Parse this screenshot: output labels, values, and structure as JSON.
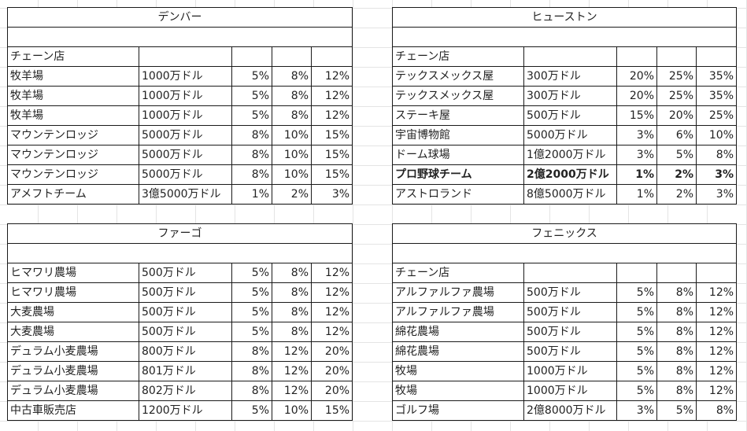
{
  "tables": {
    "denver": {
      "title": "デンバー",
      "header_label": "チェーン店",
      "rows": [
        {
          "name": "牧羊場",
          "price": "1000万ドル",
          "p1": "5%",
          "p2": "8%",
          "p3": "12%"
        },
        {
          "name": "牧羊場",
          "price": "1000万ドル",
          "p1": "5%",
          "p2": "8%",
          "p3": "12%"
        },
        {
          "name": "牧羊場",
          "price": "1000万ドル",
          "p1": "5%",
          "p2": "8%",
          "p3": "12%"
        },
        {
          "name": "マウンテンロッジ",
          "price": "5000万ドル",
          "p1": "8%",
          "p2": "10%",
          "p3": "15%"
        },
        {
          "name": "マウンテンロッジ",
          "price": "5000万ドル",
          "p1": "8%",
          "p2": "10%",
          "p3": "15%"
        },
        {
          "name": "マウンテンロッジ",
          "price": "5000万ドル",
          "p1": "8%",
          "p2": "10%",
          "p3": "15%"
        },
        {
          "name": "アメフトチーム",
          "price": "3億5000万ドル",
          "p1": "1%",
          "p2": "2%",
          "p3": "3%"
        }
      ]
    },
    "houston": {
      "title": "ヒューストン",
      "header_label": "チェーン店",
      "rows": [
        {
          "name": "テックスメックス屋",
          "price": "300万ドル",
          "p1": "20%",
          "p2": "25%",
          "p3": "35%"
        },
        {
          "name": "テックスメックス屋",
          "price": "300万ドル",
          "p1": "20%",
          "p2": "25%",
          "p3": "35%"
        },
        {
          "name": "ステーキ屋",
          "price": "500万ドル",
          "p1": "15%",
          "p2": "20%",
          "p3": "25%"
        },
        {
          "name": "宇宙博物館",
          "price": "5000万ドル",
          "p1": "3%",
          "p2": "6%",
          "p3": "10%"
        },
        {
          "name": "ドーム球場",
          "price": "1億2000万ドル",
          "p1": "3%",
          "p2": "5%",
          "p3": "8%"
        },
        {
          "name": "プロ野球チーム",
          "price": "2億2000万ドル",
          "p1": "1%",
          "p2": "2%",
          "p3": "3%"
        },
        {
          "name": "アストロランド",
          "price": "8億5000万ドル",
          "p1": "1%",
          "p2": "2%",
          "p3": "3%"
        }
      ]
    },
    "fargo": {
      "title": "ファーゴ",
      "header_label": "",
      "rows": [
        {
          "name": "ヒマワリ農場",
          "price": "500万ドル",
          "p1": "5%",
          "p2": "8%",
          "p3": "12%"
        },
        {
          "name": "ヒマワリ農場",
          "price": "500万ドル",
          "p1": "5%",
          "p2": "8%",
          "p3": "12%"
        },
        {
          "name": "大麦農場",
          "price": "500万ドル",
          "p1": "5%",
          "p2": "8%",
          "p3": "12%"
        },
        {
          "name": "大麦農場",
          "price": "500万ドル",
          "p1": "5%",
          "p2": "8%",
          "p3": "12%"
        },
        {
          "name": "デュラム小麦農場",
          "price": "800万ドル",
          "p1": "8%",
          "p2": "12%",
          "p3": "20%"
        },
        {
          "name": "デュラム小麦農場",
          "price": "801万ドル",
          "p1": "8%",
          "p2": "12%",
          "p3": "20%"
        },
        {
          "name": "デュラム小麦農場",
          "price": "802万ドル",
          "p1": "8%",
          "p2": "12%",
          "p3": "20%"
        },
        {
          "name": "中古車販売店",
          "price": "1200万ドル",
          "p1": "5%",
          "p2": "10%",
          "p3": "15%"
        }
      ]
    },
    "phoenix": {
      "title": "フェニックス",
      "header_label": "チェーン店",
      "rows": [
        {
          "name": "アルファルファ農場",
          "price": "500万ドル",
          "p1": "5%",
          "p2": "8%",
          "p3": "12%"
        },
        {
          "name": "アルファルファ農場",
          "price": "500万ドル",
          "p1": "5%",
          "p2": "8%",
          "p3": "12%"
        },
        {
          "name": "綿花農場",
          "price": "500万ドル",
          "p1": "5%",
          "p2": "8%",
          "p3": "12%"
        },
        {
          "name": "綿花農場",
          "price": "500万ドル",
          "p1": "5%",
          "p2": "8%",
          "p3": "12%"
        },
        {
          "name": "牧場",
          "price": "1000万ドル",
          "p1": "5%",
          "p2": "8%",
          "p3": "12%"
        },
        {
          "name": "牧場",
          "price": "1000万ドル",
          "p1": "5%",
          "p2": "8%",
          "p3": "12%"
        },
        {
          "name": "ゴルフ場",
          "price": "2億8000万ドル",
          "p1": "3%",
          "p2": "5%",
          "p3": "8%"
        }
      ]
    }
  }
}
